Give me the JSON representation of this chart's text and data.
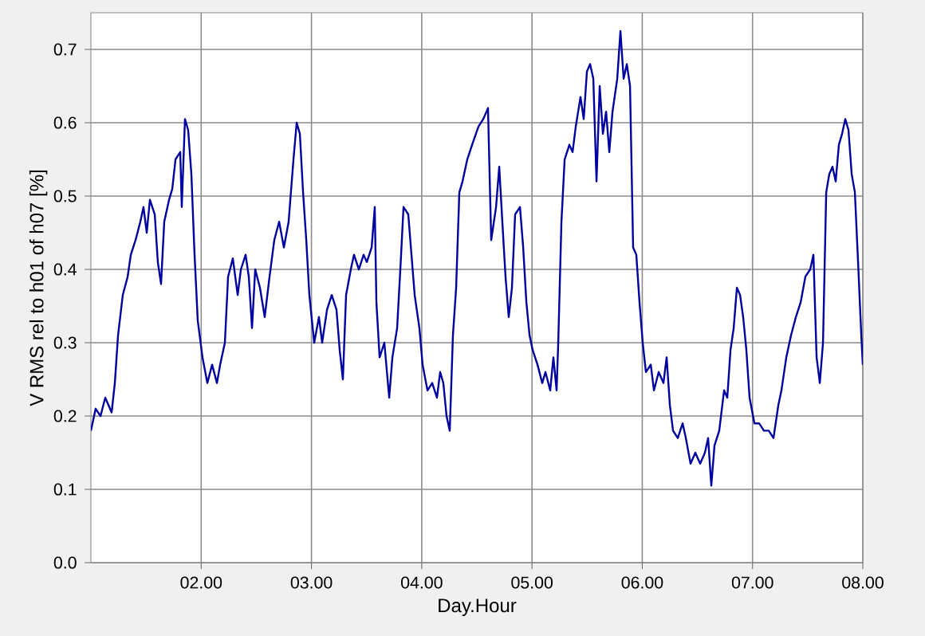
{
  "chart_data": {
    "type": "line",
    "xlabel": "Day.Hour",
    "ylabel": "V RMS rel to h01 of h07 [%]",
    "xlim": [
      1,
      8
    ],
    "ylim": [
      0,
      0.75
    ],
    "xticks": [
      {
        "value": 2,
        "label": "02.00"
      },
      {
        "value": 3,
        "label": "03.00"
      },
      {
        "value": 4,
        "label": "04.00"
      },
      {
        "value": 5,
        "label": "05.00"
      },
      {
        "value": 6,
        "label": "06.00"
      },
      {
        "value": 7,
        "label": "07.00"
      },
      {
        "value": 8,
        "label": "08.00"
      }
    ],
    "yticks": [
      {
        "value": 0,
        "label": "0.0"
      },
      0.1,
      0.2,
      0.3,
      0.4,
      0.5,
      0.6,
      0.7
    ],
    "grid": true,
    "marker": "none",
    "line_style": "solid",
    "series": [
      {
        "color": "#0000a0",
        "x": [
          1.0,
          1.043,
          1.087,
          1.13,
          1.188,
          1.217,
          1.246,
          1.289,
          1.333,
          1.362,
          1.405,
          1.448,
          1.477,
          1.506,
          1.535,
          1.579,
          1.607,
          1.636,
          1.665,
          1.709,
          1.738,
          1.767,
          1.81,
          1.824,
          1.853,
          1.882,
          1.911,
          1.94,
          1.969,
          2.012,
          2.056,
          2.099,
          2.143,
          2.172,
          2.215,
          2.244,
          2.287,
          2.331,
          2.36,
          2.403,
          2.432,
          2.461,
          2.49,
          2.533,
          2.576,
          2.62,
          2.663,
          2.707,
          2.75,
          2.793,
          2.837,
          2.866,
          2.895,
          2.924,
          2.953,
          2.981,
          3.025,
          3.068,
          3.097,
          3.141,
          3.184,
          3.227,
          3.256,
          3.285,
          3.314,
          3.357,
          3.386,
          3.43,
          3.473,
          3.502,
          3.546,
          3.574,
          3.589,
          3.618,
          3.661,
          3.705,
          3.734,
          3.777,
          3.806,
          3.835,
          3.878,
          3.907,
          3.936,
          3.979,
          4.008,
          4.052,
          4.095,
          4.138,
          4.167,
          4.196,
          4.225,
          4.254,
          4.283,
          4.312,
          4.341,
          4.37,
          4.413,
          4.457,
          4.515,
          4.558,
          4.601,
          4.63,
          4.674,
          4.703,
          4.731,
          4.76,
          4.789,
          4.818,
          4.847,
          4.891,
          4.92,
          4.949,
          4.978,
          5.006,
          5.05,
          5.093,
          5.122,
          5.165,
          5.194,
          5.223,
          5.238,
          5.267,
          5.296,
          5.339,
          5.368,
          5.397,
          5.44,
          5.469,
          5.498,
          5.527,
          5.556,
          5.585,
          5.614,
          5.643,
          5.672,
          5.701,
          5.73,
          5.773,
          5.802,
          5.831,
          5.86,
          5.889,
          5.917,
          5.946,
          5.975,
          6.004,
          6.033,
          6.077,
          6.106,
          6.149,
          6.192,
          6.221,
          6.25,
          6.279,
          6.322,
          6.366,
          6.395,
          6.438,
          6.481,
          6.525,
          6.568,
          6.597,
          6.626,
          6.655,
          6.698,
          6.742,
          6.771,
          6.8,
          6.829,
          6.858,
          6.887,
          6.915,
          6.944,
          6.973,
          7.017,
          7.06,
          7.103,
          7.147,
          7.19,
          7.234,
          7.262,
          7.306,
          7.349,
          7.393,
          7.436,
          7.479,
          7.523,
          7.552,
          7.581,
          7.61,
          7.639,
          7.668,
          7.696,
          7.725,
          7.754,
          7.783,
          7.812,
          7.841,
          7.87,
          7.899,
          7.928,
          7.957,
          7.986,
          8.0
        ],
        "values": [
          0.18,
          0.21,
          0.2,
          0.225,
          0.205,
          0.245,
          0.31,
          0.365,
          0.39,
          0.42,
          0.44,
          0.465,
          0.485,
          0.45,
          0.495,
          0.475,
          0.41,
          0.38,
          0.465,
          0.495,
          0.51,
          0.55,
          0.56,
          0.485,
          0.605,
          0.59,
          0.53,
          0.42,
          0.33,
          0.28,
          0.245,
          0.27,
          0.245,
          0.27,
          0.3,
          0.39,
          0.415,
          0.365,
          0.4,
          0.42,
          0.39,
          0.32,
          0.4,
          0.375,
          0.335,
          0.39,
          0.44,
          0.465,
          0.43,
          0.465,
          0.55,
          0.6,
          0.585,
          0.505,
          0.44,
          0.365,
          0.3,
          0.335,
          0.3,
          0.345,
          0.365,
          0.345,
          0.29,
          0.25,
          0.365,
          0.4,
          0.42,
          0.4,
          0.42,
          0.41,
          0.43,
          0.485,
          0.355,
          0.28,
          0.3,
          0.225,
          0.28,
          0.32,
          0.4,
          0.485,
          0.475,
          0.42,
          0.365,
          0.32,
          0.27,
          0.235,
          0.245,
          0.225,
          0.26,
          0.245,
          0.2,
          0.18,
          0.31,
          0.375,
          0.505,
          0.52,
          0.55,
          0.57,
          0.595,
          0.605,
          0.62,
          0.44,
          0.485,
          0.54,
          0.465,
          0.39,
          0.335,
          0.375,
          0.475,
          0.485,
          0.43,
          0.355,
          0.31,
          0.29,
          0.27,
          0.245,
          0.26,
          0.235,
          0.28,
          0.235,
          0.3,
          0.465,
          0.55,
          0.57,
          0.56,
          0.595,
          0.635,
          0.605,
          0.67,
          0.68,
          0.66,
          0.52,
          0.65,
          0.585,
          0.615,
          0.56,
          0.615,
          0.66,
          0.725,
          0.66,
          0.68,
          0.65,
          0.43,
          0.42,
          0.355,
          0.3,
          0.26,
          0.27,
          0.235,
          0.26,
          0.245,
          0.28,
          0.215,
          0.18,
          0.17,
          0.19,
          0.17,
          0.135,
          0.15,
          0.135,
          0.15,
          0.17,
          0.105,
          0.16,
          0.18,
          0.235,
          0.225,
          0.29,
          0.32,
          0.375,
          0.365,
          0.335,
          0.29,
          0.225,
          0.19,
          0.19,
          0.18,
          0.18,
          0.17,
          0.215,
          0.235,
          0.28,
          0.31,
          0.335,
          0.355,
          0.39,
          0.4,
          0.42,
          0.28,
          0.245,
          0.3,
          0.505,
          0.53,
          0.54,
          0.52,
          0.57,
          0.585,
          0.605,
          0.59,
          0.53,
          0.505,
          0.41,
          0.31,
          0.27
        ]
      }
    ]
  }
}
